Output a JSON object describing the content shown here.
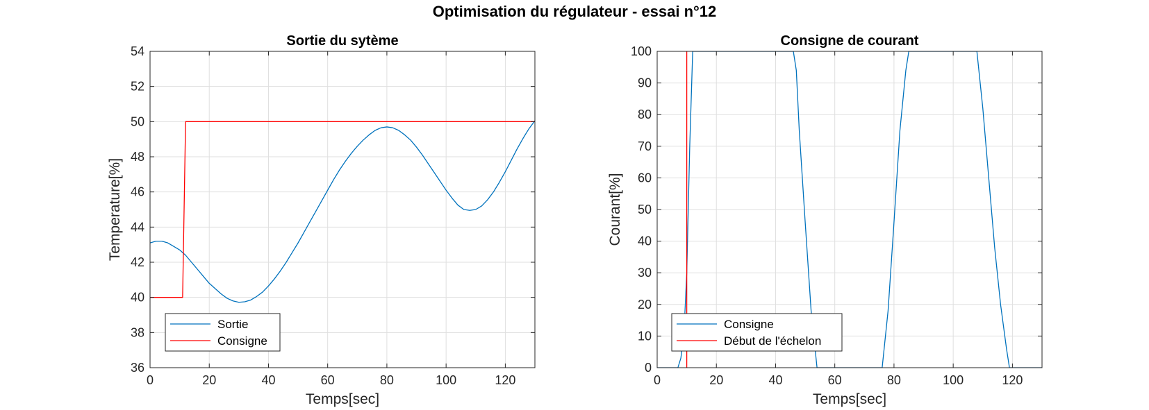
{
  "suptitle": "Optimisation du régulateur - essai n°12",
  "chart_data": [
    {
      "type": "line",
      "title": "Sortie du sytème",
      "xlabel": "Temps[sec]",
      "ylabel": "Temperature[%]",
      "xlim": [
        0,
        130
      ],
      "ylim": [
        36,
        54
      ],
      "xticks": [
        0,
        20,
        40,
        60,
        80,
        100,
        120
      ],
      "yticks": [
        36,
        38,
        40,
        42,
        44,
        46,
        48,
        50,
        52,
        54
      ],
      "grid": true,
      "legend_location": "bottom-left",
      "series": [
        {
          "name": "Sortie",
          "color": "#0072BD",
          "x": [
            0,
            2,
            4,
            6,
            8,
            10,
            12,
            14,
            16,
            18,
            20,
            22,
            24,
            26,
            28,
            30,
            32,
            34,
            36,
            38,
            40,
            42,
            44,
            46,
            48,
            50,
            52,
            54,
            56,
            58,
            60,
            62,
            64,
            66,
            68,
            70,
            72,
            74,
            76,
            78,
            80,
            82,
            84,
            86,
            88,
            90,
            92,
            94,
            96,
            98,
            100,
            102,
            104,
            106,
            108,
            110,
            112,
            114,
            116,
            118,
            120,
            122,
            124,
            126,
            128,
            130
          ],
          "y": [
            43.1,
            43.2,
            43.2,
            43.1,
            42.9,
            42.7,
            42.4,
            42.0,
            41.6,
            41.2,
            40.8,
            40.5,
            40.2,
            39.95,
            39.8,
            39.72,
            39.75,
            39.85,
            40.05,
            40.3,
            40.65,
            41.05,
            41.5,
            42.0,
            42.55,
            43.1,
            43.7,
            44.3,
            44.9,
            45.5,
            46.1,
            46.7,
            47.25,
            47.75,
            48.2,
            48.6,
            48.95,
            49.25,
            49.5,
            49.65,
            49.7,
            49.65,
            49.5,
            49.25,
            48.95,
            48.55,
            48.1,
            47.6,
            47.1,
            46.6,
            46.1,
            45.65,
            45.25,
            45.0,
            44.95,
            45.0,
            45.2,
            45.55,
            46.0,
            46.55,
            47.15,
            47.8,
            48.45,
            49.05,
            49.6,
            50.05
          ]
        },
        {
          "name": "Consigne",
          "color": "#FF0000",
          "x": [
            0,
            11,
            12,
            130
          ],
          "y": [
            40,
            40,
            50,
            50
          ]
        }
      ]
    },
    {
      "type": "line",
      "title": "Consigne de courant",
      "xlabel": "Temps[sec]",
      "ylabel": "Courant[%]",
      "xlim": [
        0,
        130
      ],
      "ylim": [
        0,
        100
      ],
      "xticks": [
        0,
        20,
        40,
        60,
        80,
        100,
        120
      ],
      "yticks": [
        0,
        10,
        20,
        30,
        40,
        50,
        60,
        70,
        80,
        90,
        100
      ],
      "grid": true,
      "legend_location": "bottom-left",
      "series": [
        {
          "name": "Consigne",
          "color": "#0072BD",
          "x": [
            0,
            7,
            8,
            9,
            10,
            11,
            12,
            46,
            47,
            48,
            50,
            52,
            54,
            76,
            78,
            80,
            82,
            84,
            85,
            108,
            110,
            112,
            114,
            116,
            118,
            119,
            130
          ],
          "y": [
            0,
            0,
            3,
            10,
            30,
            70,
            100,
            100,
            94,
            75,
            46,
            18,
            0,
            0,
            18,
            46,
            75,
            94,
            100,
            100,
            82,
            60,
            38,
            20,
            6,
            0,
            0
          ]
        },
        {
          "name": "Début de l'échelon",
          "color": "#FF0000",
          "x": [
            10,
            10
          ],
          "y": [
            0,
            100
          ]
        }
      ]
    }
  ]
}
